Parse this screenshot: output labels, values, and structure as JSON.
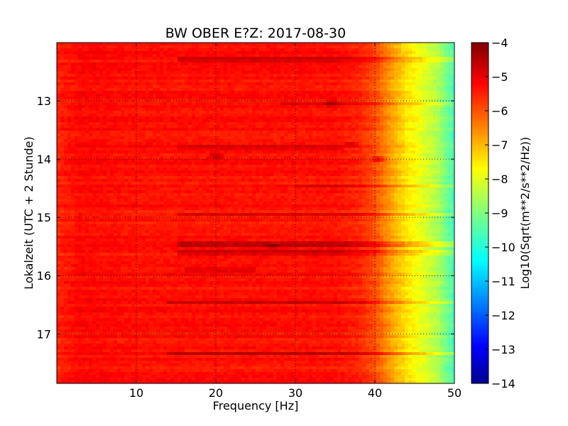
{
  "chart_data": {
    "type": "heatmap",
    "title": "BW OBER E?Z: 2017-08-30",
    "xlabel": "Frequency [Hz]",
    "ylabel": "Lokalzeit (UTC + 2 Stunde)",
    "xlim": [
      0,
      50
    ],
    "ylim": [
      12.0,
      17.85
    ],
    "y_inverted": true,
    "x_ticks": [
      {
        "value": 10,
        "label": "10"
      },
      {
        "value": 20,
        "label": "20"
      },
      {
        "value": 30,
        "label": "30"
      },
      {
        "value": 40,
        "label": "40"
      },
      {
        "value": 50,
        "label": "50"
      }
    ],
    "y_ticks": [
      {
        "value": 13,
        "label": "13"
      },
      {
        "value": 14,
        "label": "14"
      },
      {
        "value": 15,
        "label": "15"
      },
      {
        "value": 16,
        "label": "16"
      },
      {
        "value": 17,
        "label": "17"
      }
    ],
    "grid": true,
    "colormap": "jet",
    "colorbar": {
      "label": "Log10(Sqrt(m**2/s**2/Hz))",
      "min": -14,
      "max": -4,
      "ticks": [
        {
          "value": -4,
          "label": "−4"
        },
        {
          "value": -5,
          "label": "−5"
        },
        {
          "value": -6,
          "label": "−6"
        },
        {
          "value": -7,
          "label": "−7"
        },
        {
          "value": -8,
          "label": "−8"
        },
        {
          "value": -9,
          "label": "−9"
        },
        {
          "value": -10,
          "label": "−10"
        },
        {
          "value": -11,
          "label": "−11"
        },
        {
          "value": -12,
          "label": "−12"
        },
        {
          "value": -13,
          "label": "−13"
        },
        {
          "value": -14,
          "label": "−14"
        }
      ]
    },
    "frequency_profile": [
      {
        "x": 0,
        "v": -5.6
      },
      {
        "x": 3,
        "v": -5.3
      },
      {
        "x": 10,
        "v": -5.4
      },
      {
        "x": 35,
        "v": -5.4
      },
      {
        "x": 38,
        "v": -5.6
      },
      {
        "x": 40,
        "v": -6.0
      },
      {
        "x": 42,
        "v": -6.8
      },
      {
        "x": 44,
        "v": -7.5
      },
      {
        "x": 46,
        "v": -8.0
      },
      {
        "x": 48,
        "v": -8.6
      },
      {
        "x": 50,
        "v": -9.6
      }
    ],
    "band_features": [
      {
        "y": 12.3,
        "x0": 15,
        "x1": 50,
        "dv": 0.6
      },
      {
        "y": 13.05,
        "x0": 28,
        "x1": 50,
        "dv": 0.5
      },
      {
        "y": 13.8,
        "x0": 15,
        "x1": 36,
        "dv": 0.35
      },
      {
        "y": 14.45,
        "x0": 30,
        "x1": 50,
        "dv": 0.45
      },
      {
        "y": 14.95,
        "x0": 15,
        "x1": 50,
        "dv": 0.6
      },
      {
        "y": 15.45,
        "x0": 15,
        "x1": 50,
        "dv": 0.7
      },
      {
        "y": 15.6,
        "x0": 15,
        "x1": 50,
        "dv": 0.6
      },
      {
        "y": 15.9,
        "x0": 16,
        "x1": 25,
        "dv": 0.4
      },
      {
        "y": 16.45,
        "x0": 14,
        "x1": 50,
        "dv": 0.6
      },
      {
        "y": 17.33,
        "x0": 14,
        "x1": 50,
        "dv": 0.7
      }
    ],
    "hot_spots": [
      {
        "x": 20,
        "y": 13.95,
        "dv": 0.7
      },
      {
        "x": 34.5,
        "y": 13.05,
        "dv": 0.6
      },
      {
        "x": 37,
        "y": 13.75,
        "dv": 0.6
      },
      {
        "x": 40.5,
        "y": 14.0,
        "dv": 0.8
      },
      {
        "x": 27,
        "y": 15.5,
        "dv": 0.6
      }
    ]
  }
}
